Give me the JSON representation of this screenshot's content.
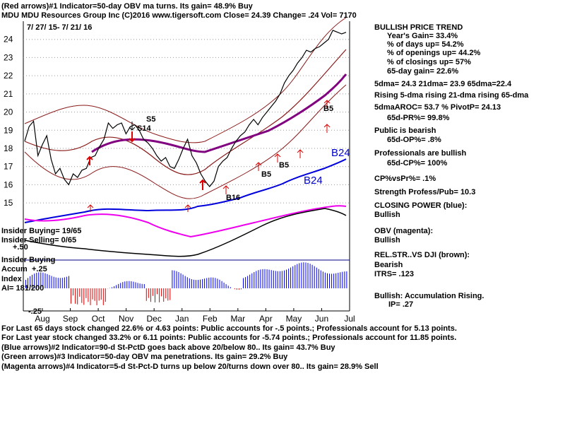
{
  "header": {
    "line1": "(Red arrows)#1 Indicator=50-day OBV ma turns. Its gain= 48.9% Buy",
    "line2": "MDU   MDU Resources Group Inc  (C)2016 www.tigersoft.com     Close=  24.39  Change= .24 Vol= 7170",
    "dates": "7/ 27/ 15- 7/ 21/ 16"
  },
  "sidebar": [
    "BULLISH PRICE TREND",
    "Year's Gain= 33.4%",
    "% of days up= 54.2%",
    "% of openings up= 44.2%",
    "% of closings up= 57%",
    "65-day gain= 22.6%",
    "5dma= 24.3 21dma= 23.9 65dma=22.4",
    "Rising 5-dma rising 21-dma rising 65-dma",
    "5dmaAROC= 53.7 %  PivotP= 24.13",
    "65d-PR%= 99.8%",
    "Public is bearish",
    "65d-OP%= .8%",
    "Professionals are bullish",
    "65d-CP%= 100%",
    "CP%vsPr%=  .1%",
    "Strength Profess/Pub= 10.3",
    "CLOSING POWER (blue):",
    "Bullish",
    "OBV (magenta):",
    "Bullish",
    "REL.STR..VS DJI (brown):",
    "Bearish",
    "ITRS= .123",
    "Bullish: Accumulation Rising.",
    "IP=  .27"
  ],
  "left_labels": {
    "insider_buying": "Insider Buying= 19/65",
    "insider_selling": "Insider Selling= 0/65",
    "plus50": "+.50",
    "insider_buying2": "Insider Buying",
    "accum": "Accum",
    "plus25": "+.25",
    "index": "Index",
    "ai": "AI= 181/200",
    "minus25": "-.25"
  },
  "annotations": {
    "s5": "S5",
    "s14": "S14",
    "b5_a": "B5",
    "b5_b": "B5",
    "b5_c": "B5",
    "b16": "B16",
    "b24_upper": "B24",
    "b24_lower": "B24"
  },
  "footer": [
    "For Last 65 days stock changed  22.6% or  4.63 points:  Public accounts for -.5 points.;  Professionals account for  5.13 points.",
    "For Last year stock changed  33.2% or  6.11 points:  Public accounts for -5.74 points.;  Professionals account for  11.85 points.",
    "(Blue arrows)#2 Indicator=90-d St-PctD goes back above 20/below 80.. Its gain= 43.7% Buy",
    "(Green arrows)#3 Indicator=50-day OBV ma penetrations. Its gain= 29.2% Buy",
    "(Magenta arrows)#4 Indicator=5-d St-Pct-D turns up below 20/turns down over 80.. Its gain= 28.9% Sell"
  ],
  "chart_data": {
    "type": "line",
    "title": "MDU   MDU Resources Group Inc",
    "x_tick_labels": [
      "Aug",
      "Sep",
      "Oct",
      "Nov",
      "Dec",
      "Jan",
      "Feb",
      "Mar",
      "Apr",
      "May",
      "Jun",
      "Jul"
    ],
    "y_tick_labels": [
      15,
      16,
      17,
      18,
      19,
      20,
      21,
      22,
      23,
      24
    ],
    "ylim": [
      14.5,
      25
    ],
    "series": [
      {
        "name": "price",
        "values": [
          18.4,
          19.2,
          19.5,
          17.6,
          18.2,
          18.7,
          17.4,
          16.6,
          16.9,
          16.3,
          16.0,
          16.6,
          16.4,
          16.8,
          16.9,
          17.5,
          17.6,
          18.1,
          18.5,
          19.4,
          19.1,
          19.3,
          19.4,
          18.8,
          19.2,
          19.3,
          19.0,
          18.5,
          18.3,
          18.0,
          17.6,
          17.3,
          17.5,
          17.0,
          16.9,
          17.4,
          18.0,
          18.5,
          17.6,
          17.2,
          16.6,
          16.2,
          15.9,
          16.2,
          17.0,
          17.3,
          17.5,
          18.0,
          18.4,
          18.7,
          18.9,
          19.3,
          19.6,
          19.3,
          19.7,
          20.0,
          20.3,
          20.6,
          21.0,
          21.6,
          22.0,
          22.3,
          22.7,
          23.0,
          23.4,
          23.3,
          23.5,
          23.6,
          23.8,
          24.0,
          24.5,
          24.4,
          24.3,
          24.39
        ]
      },
      {
        "name": "21dma",
        "values": []
      },
      {
        "name": "65dma",
        "values": []
      }
    ],
    "grid": true,
    "legend": "none"
  }
}
